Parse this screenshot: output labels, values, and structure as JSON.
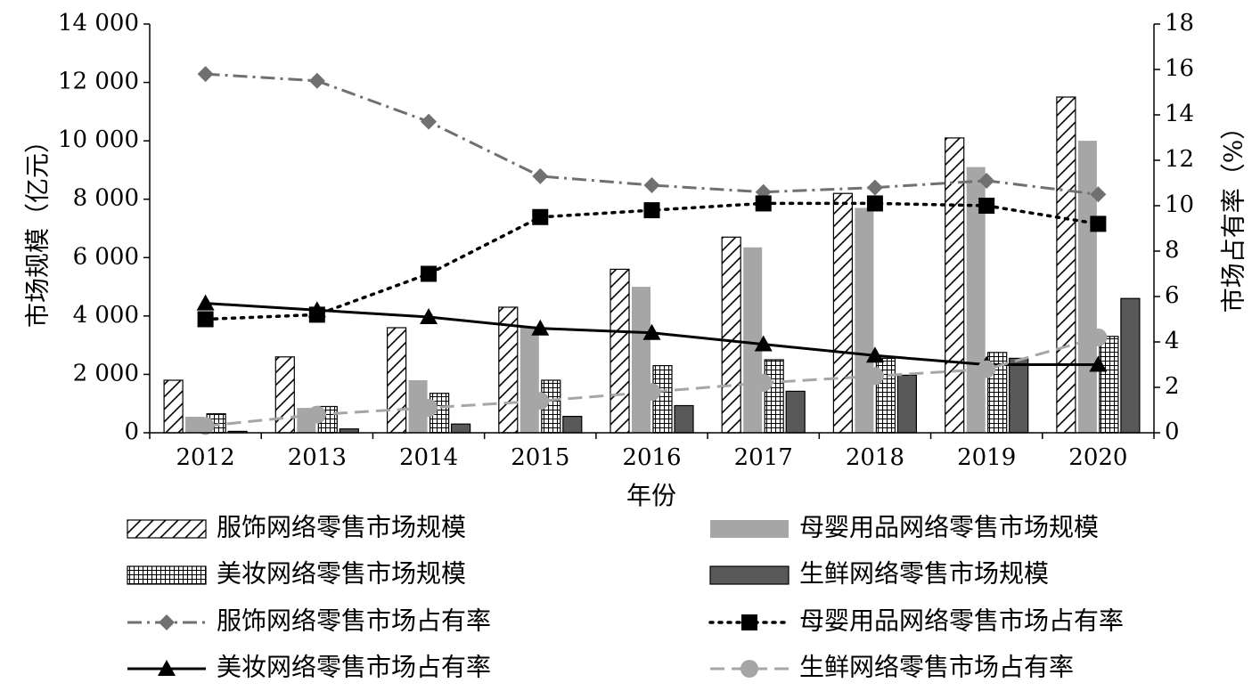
{
  "chart_data": {
    "type": "bar",
    "categories": [
      "2012",
      "2013",
      "2014",
      "2015",
      "2016",
      "2017",
      "2018",
      "2019",
      "2020"
    ],
    "xlabel": "年份",
    "ylabel": "市场规模（亿元）",
    "y2label": "市场占有率（%）",
    "ylim": [
      0,
      14000
    ],
    "yticks": [
      "0",
      "2 000",
      "4 000",
      "6 000",
      "8 000",
      "10 000",
      "12 000",
      "14 000"
    ],
    "y2lim": [
      0,
      18
    ],
    "y2ticks": [
      "0",
      "2",
      "4",
      "6",
      "8",
      "10",
      "12",
      "14",
      "16",
      "18"
    ],
    "grid": false,
    "legend_position": "bottom",
    "bar_series": [
      {
        "name": "服饰网络零售市场规模",
        "pattern": "diagonal-hatch",
        "values": [
          1800,
          2600,
          3600,
          4300,
          5600,
          6700,
          8200,
          10100,
          11500
        ]
      },
      {
        "name": "母婴用品网络零售市场规模",
        "color": "#a6a6a6",
        "values": [
          550,
          850,
          1800,
          3650,
          5000,
          6350,
          7700,
          9100,
          10000
        ]
      },
      {
        "name": "美妆网络零售市场规模",
        "pattern": "grid-hatch",
        "values": [
          650,
          900,
          1350,
          1800,
          2300,
          2500,
          2550,
          2750,
          3300
        ]
      },
      {
        "name": "生鲜网络零售市场规模",
        "color": "#595959",
        "values": [
          50,
          130,
          300,
          560,
          930,
          1420,
          1970,
          2550,
          4600
        ]
      }
    ],
    "line_series": [
      {
        "name": "服饰网络零售市场占有率",
        "color": "#707070",
        "dash": "dash-dot",
        "marker": "diamond",
        "values": [
          15.8,
          15.5,
          13.7,
          11.3,
          10.9,
          10.6,
          10.8,
          11.1,
          10.5
        ]
      },
      {
        "name": "母婴用品网络零售市场占有率",
        "color": "#000000",
        "dash": "dotted",
        "marker": "square",
        "values": [
          5.0,
          5.2,
          7.0,
          9.5,
          9.8,
          10.1,
          10.1,
          10.0,
          9.2
        ]
      },
      {
        "name": "美妆网络零售市场占有率",
        "color": "#000000",
        "dash": "solid",
        "marker": "triangle",
        "values": [
          5.7,
          5.4,
          5.1,
          4.6,
          4.4,
          3.9,
          3.4,
          3.0,
          3.0
        ]
      },
      {
        "name": "生鲜网络零售市场占有率",
        "color": "#a6a6a6",
        "dash": "dashed",
        "marker": "circle",
        "values": [
          0.3,
          0.8,
          1.1,
          1.4,
          1.8,
          2.2,
          2.5,
          2.8,
          4.2
        ]
      }
    ]
  }
}
